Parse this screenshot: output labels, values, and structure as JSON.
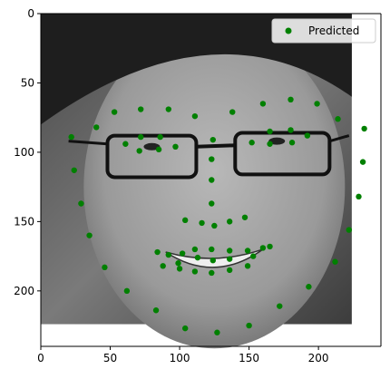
{
  "chart_data": {
    "type": "scatter",
    "title": "",
    "xlabel": "",
    "ylabel": "",
    "xlim": [
      0,
      245
    ],
    "ylim": [
      240,
      0
    ],
    "xticks": [
      0,
      50,
      100,
      150,
      200
    ],
    "yticks": [
      0,
      50,
      100,
      150,
      200
    ],
    "image_extent": [
      0,
      224,
      224,
      0
    ],
    "image_description": "grayscale face photo of a smiling woman wearing glasses",
    "legend": {
      "location": "upper-right"
    },
    "series": [
      {
        "name": "Predicted",
        "color": "#008000",
        "points": [
          [
            22,
            89
          ],
          [
            24,
            113
          ],
          [
            29,
            137
          ],
          [
            35,
            160
          ],
          [
            46,
            183
          ],
          [
            62,
            200
          ],
          [
            83,
            214
          ],
          [
            104,
            227
          ],
          [
            127,
            230
          ],
          [
            150,
            225
          ],
          [
            172,
            211
          ],
          [
            193,
            197
          ],
          [
            212,
            179
          ],
          [
            222,
            156
          ],
          [
            229,
            132
          ],
          [
            232,
            107
          ],
          [
            233,
            83
          ],
          [
            40,
            82
          ],
          [
            53,
            71
          ],
          [
            72,
            69
          ],
          [
            92,
            69
          ],
          [
            111,
            74
          ],
          [
            138,
            71
          ],
          [
            160,
            65
          ],
          [
            180,
            62
          ],
          [
            199,
            65
          ],
          [
            214,
            76
          ],
          [
            124,
            91
          ],
          [
            123,
            105
          ],
          [
            123,
            120
          ],
          [
            123,
            137
          ],
          [
            104,
            149
          ],
          [
            116,
            151
          ],
          [
            125,
            153
          ],
          [
            136,
            150
          ],
          [
            147,
            147
          ],
          [
            61,
            94
          ],
          [
            72,
            89
          ],
          [
            86,
            89
          ],
          [
            97,
            96
          ],
          [
            85,
            98
          ],
          [
            71,
            99
          ],
          [
            152,
            93
          ],
          [
            165,
            85
          ],
          [
            180,
            84
          ],
          [
            192,
            88
          ],
          [
            181,
            93
          ],
          [
            165,
            94
          ],
          [
            84,
            172
          ],
          [
            92,
            174
          ],
          [
            102,
            173
          ],
          [
            111,
            170
          ],
          [
            123,
            170
          ],
          [
            136,
            171
          ],
          [
            149,
            171
          ],
          [
            160,
            169
          ],
          [
            165,
            168
          ],
          [
            153,
            175
          ],
          [
            136,
            177
          ],
          [
            124,
            178
          ],
          [
            113,
            176
          ],
          [
            99,
            180
          ],
          [
            88,
            182
          ],
          [
            111,
            186
          ],
          [
            123,
            187
          ],
          [
            136,
            185
          ],
          [
            149,
            182
          ],
          [
            100,
            184
          ]
        ]
      }
    ]
  }
}
